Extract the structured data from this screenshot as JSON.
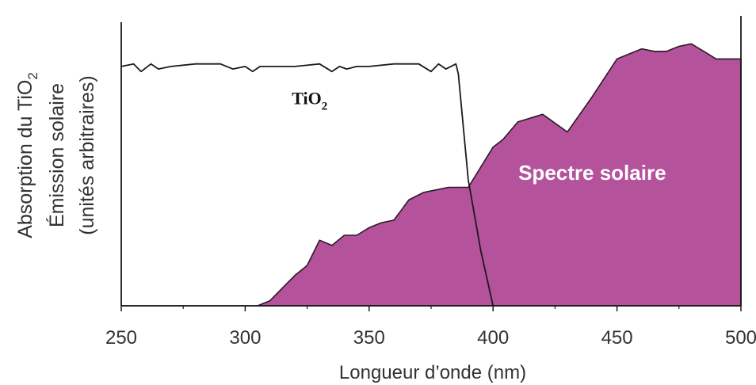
{
  "chart_data": {
    "type": "area",
    "title": "",
    "xlabel": "Longueur d’onde (nm)",
    "ylabel_lines": [
      "Absorption du TiO",
      "Émission solaire",
      "(unités arbitraires)"
    ],
    "ylabel_subscript": "2",
    "xlim": [
      250,
      500
    ],
    "ylim": [
      0,
      100
    ],
    "xticks": [
      250,
      300,
      350,
      400,
      450,
      500
    ],
    "grid": false,
    "series": [
      {
        "kind": "line",
        "color": "#1a1a1a",
        "x": [
          250,
          255,
          258,
          262,
          265,
          270,
          280,
          290,
          295,
          300,
          303,
          306,
          310,
          320,
          330,
          335,
          338,
          341,
          345,
          350,
          360,
          370,
          375,
          378,
          381,
          385,
          386,
          390,
          395,
          400
        ],
        "y": [
          95,
          96,
          93,
          96,
          94,
          95,
          96,
          96,
          94,
          95,
          93,
          95,
          95,
          95,
          96,
          93,
          95,
          94,
          95,
          95,
          96,
          96,
          93,
          96,
          94,
          96,
          92,
          50,
          22,
          0
        ]
      },
      {
        "kind": "area",
        "color": "#b5529c",
        "x": [
          250,
          305,
          310,
          315,
          320,
          325,
          328,
          330,
          335,
          340,
          345,
          350,
          355,
          360,
          363,
          366,
          372,
          377,
          382,
          385,
          390,
          395,
          400,
          404,
          410,
          420,
          430,
          440,
          450,
          455,
          460,
          465,
          470,
          475,
          480,
          485,
          490,
          495,
          500
        ],
        "y": [
          0,
          0,
          2,
          7,
          12,
          16,
          22,
          26,
          24,
          28,
          28,
          31,
          33,
          34,
          38,
          42,
          45,
          46,
          47,
          47,
          47,
          55,
          63,
          66,
          73,
          76,
          69,
          83,
          98,
          100,
          102,
          101,
          101,
          103,
          104,
          101,
          98,
          98,
          98
        ]
      }
    ],
    "annotations": [
      {
        "text": "TiO",
        "subscript": "2",
        "x": 326,
        "y": 80
      },
      {
        "text": "Spectre solaire",
        "x": 440,
        "y": 50
      }
    ]
  }
}
